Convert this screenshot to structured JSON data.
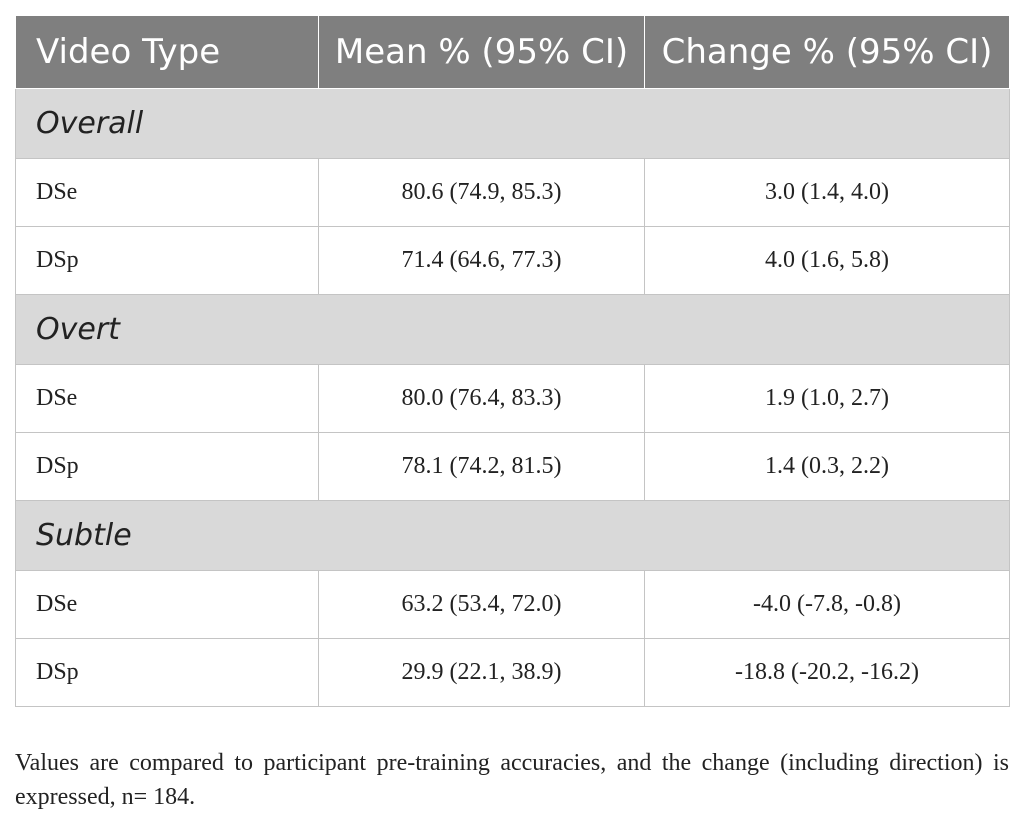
{
  "table": {
    "headers": [
      "Video Type",
      "Mean % (95% CI)",
      "Change % (95% CI)"
    ],
    "sections": [
      {
        "label": "Overall",
        "rows": [
          {
            "type": "DSe",
            "mean": "80.6 (74.9, 85.3)",
            "change": "3.0 (1.4, 4.0)"
          },
          {
            "type": "DSp",
            "mean": "71.4 (64.6, 77.3)",
            "change": "4.0 (1.6, 5.8)"
          }
        ]
      },
      {
        "label": "Overt",
        "rows": [
          {
            "type": "DSe",
            "mean": "80.0 (76.4, 83.3)",
            "change": "1.9 (1.0, 2.7)"
          },
          {
            "type": "DSp",
            "mean": "78.1 (74.2, 81.5)",
            "change": "1.4 (0.3, 2.2)"
          }
        ]
      },
      {
        "label": "Subtle",
        "rows": [
          {
            "type": "DSe",
            "mean": "63.2 (53.4, 72.0)",
            "change": "-4.0 (-7.8, -0.8)"
          },
          {
            "type": "DSp",
            "mean": "29.9 (22.1, 38.9)",
            "change": "-18.8 (-20.2, -16.2)"
          }
        ]
      }
    ]
  },
  "footnote": "Values are compared to participant pre-training accuracies, and the change (including direction) is expressed, n= 184.",
  "colors": {
    "header_bg": "#7f7f7f",
    "header_text": "#ffffff",
    "section_bg": "#d9d9d9",
    "border": "#c4c4c4"
  }
}
